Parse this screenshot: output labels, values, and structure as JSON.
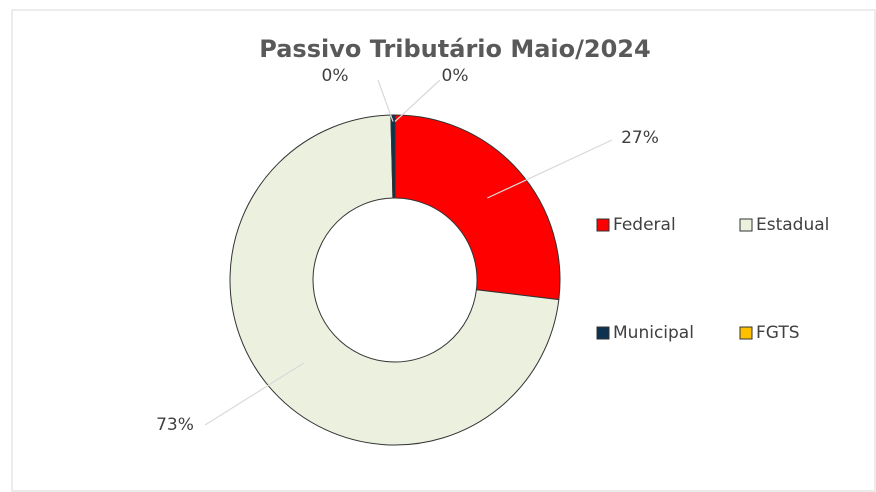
{
  "chart_data": {
    "type": "donut",
    "title": "Passivo Tributário Maio/2024",
    "categories": [
      "Federal",
      "Estadual",
      "Municipal",
      "FGTS"
    ],
    "values": [
      27,
      73,
      0.4,
      0
    ],
    "value_labels": [
      "27%",
      "73%",
      "0%",
      "0%"
    ],
    "colors": [
      "#ff0000",
      "#ebf1de",
      "#0d3350",
      "#ffc000"
    ],
    "legend": "right"
  }
}
